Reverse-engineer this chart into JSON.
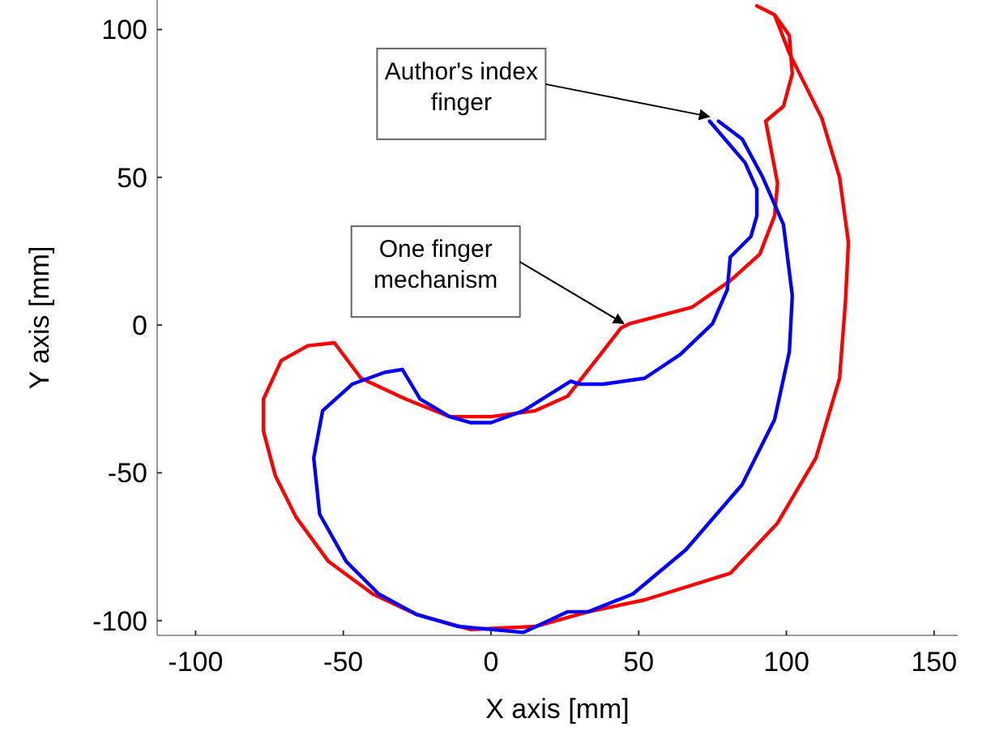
{
  "chart_data": {
    "type": "line",
    "xlabel": "X axis [mm]",
    "ylabel": "Y axis [mm]",
    "xlim": [
      -113,
      158
    ],
    "ylim": [
      -105,
      110
    ],
    "xticks": [
      -100,
      -50,
      0,
      50,
      100,
      150
    ],
    "yticks": [
      -100,
      -50,
      0,
      50,
      100
    ],
    "grid": false,
    "marker": "none",
    "line_style": "solid",
    "annotations": [
      {
        "text": "Author's index finger",
        "x": 75,
        "y": 70
      },
      {
        "text": "One finger mechanism",
        "x": 46,
        "y": 0
      }
    ],
    "series": [
      {
        "color": "#ff0000",
        "x": [
          90,
          96,
          101,
          112,
          118,
          121,
          120,
          118,
          110,
          97,
          81,
          52,
          33,
          15,
          -7,
          -25,
          -40,
          -55,
          -66,
          -73,
          -77,
          -77,
          -71,
          -62,
          -53,
          -44,
          -29,
          -14,
          0,
          15,
          26,
          37,
          44,
          47,
          68,
          81,
          91,
          96,
          97,
          93,
          99,
          102,
          101,
          96
        ],
        "values": [
          108,
          105,
          92,
          70,
          50,
          28,
          8,
          -18,
          -45,
          -67,
          -84,
          -93,
          -97,
          -102,
          -103,
          -98,
          -91,
          -80,
          -65,
          -51,
          -36,
          -25,
          -12,
          -7,
          -6,
          -18,
          -25,
          -31,
          -31,
          -29,
          -24,
          -10,
          -1,
          0.5,
          6,
          15,
          24,
          37,
          48,
          69,
          74,
          85,
          98,
          105
        ]
      },
      {
        "color": "#0000ff",
        "x": [
          74,
          86,
          90,
          90,
          88,
          81,
          80,
          75,
          64,
          52,
          38,
          30,
          27,
          11,
          0,
          -7,
          -14,
          -24,
          -27,
          -30,
          -36,
          -47,
          -57,
          -60,
          -58,
          -49,
          -38,
          -25,
          -11,
          11,
          26,
          33,
          48,
          66,
          85,
          96,
          101,
          102,
          99,
          92,
          85,
          77
        ],
        "values": [
          69,
          55,
          46,
          37,
          30,
          23,
          12,
          0.5,
          -10,
          -18,
          -20,
          -20,
          -19,
          -29,
          -33,
          -33,
          -31,
          -25,
          -20,
          -15,
          -16,
          -20,
          -29,
          -45,
          -64,
          -80,
          -91,
          -98,
          -102,
          -104,
          -97,
          -97,
          -91,
          -76,
          -54,
          -32,
          -9,
          10,
          34,
          50,
          63,
          69
        ]
      }
    ]
  }
}
